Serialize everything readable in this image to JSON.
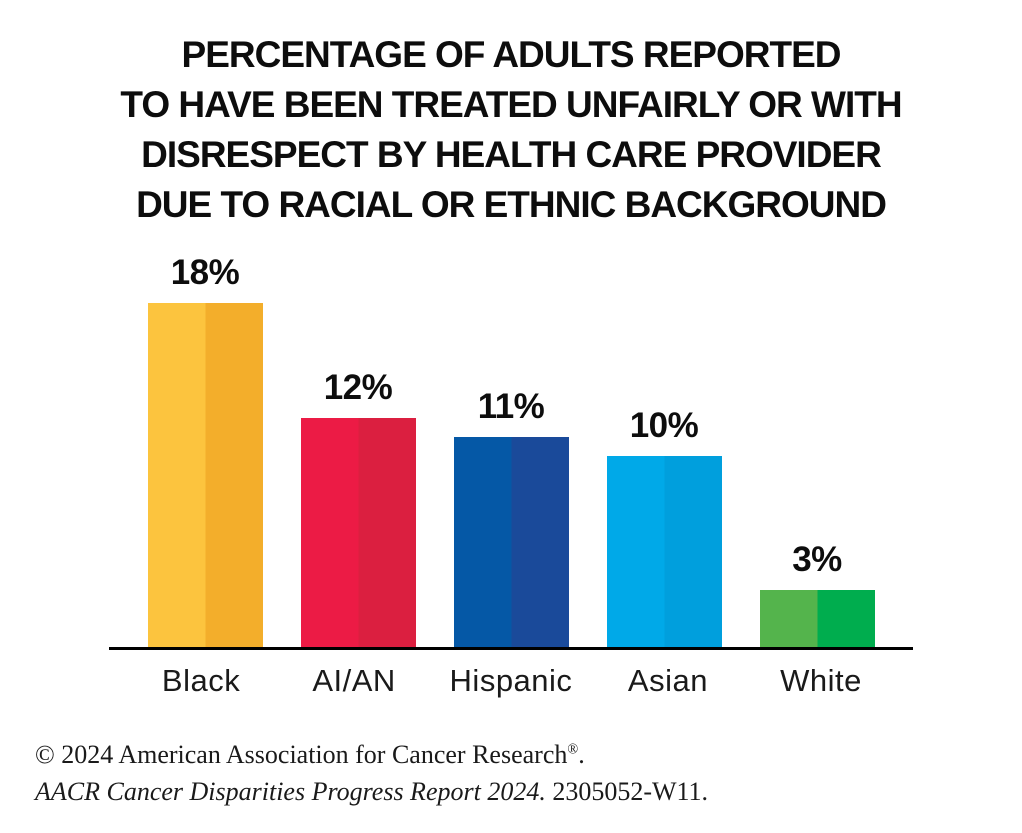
{
  "chart_data": {
    "type": "bar",
    "title": "PERCENTAGE OF ADULTS REPORTED TO HAVE BEEN TREATED UNFAIRLY OR WITH DISRESPECT BY HEALTH CARE PROVIDER DUE TO RACIAL OR ETHNIC BACKGROUND",
    "title_lines": [
      "PERCENTAGE OF ADULTS REPORTED",
      "TO HAVE BEEN TREATED UNFAIRLY OR WITH",
      "DISRESPECT BY HEALTH CARE PROVIDER",
      "DUE TO RACIAL OR ETHNIC BACKGROUND"
    ],
    "categories": [
      "Black",
      "AI/AN",
      "Hispanic",
      "Asian",
      "White"
    ],
    "values": [
      18,
      12,
      11,
      10,
      3
    ],
    "value_labels": [
      "18%",
      "12%",
      "11%",
      "10%",
      "3%"
    ],
    "unit": "percent",
    "ylim": [
      0,
      18
    ],
    "grid": false,
    "legend": false,
    "xlabel": "",
    "ylabel": "",
    "bar_colors": [
      {
        "name": "yellow",
        "left": "#FCC43E",
        "right": "#F3AE2B"
      },
      {
        "name": "red",
        "left": "#EC1B45",
        "right": "#DB1F40"
      },
      {
        "name": "dark-blue",
        "left": "#0558A6",
        "right": "#1A4A9A"
      },
      {
        "name": "light-blue",
        "left": "#00A9E8",
        "right": "#009FDD"
      },
      {
        "name": "green",
        "left": "#54B44C",
        "right": "#00AD4E"
      }
    ],
    "axis_color": "#000000"
  },
  "footer": {
    "line1_pre": "© 2024 American Association for Cancer Research",
    "line1_sup": "®",
    "line1_post": ".",
    "line2_italic": "AACR Cancer Disparities Progress Report 2024.",
    "line2_code": " 2305052-W11."
  }
}
